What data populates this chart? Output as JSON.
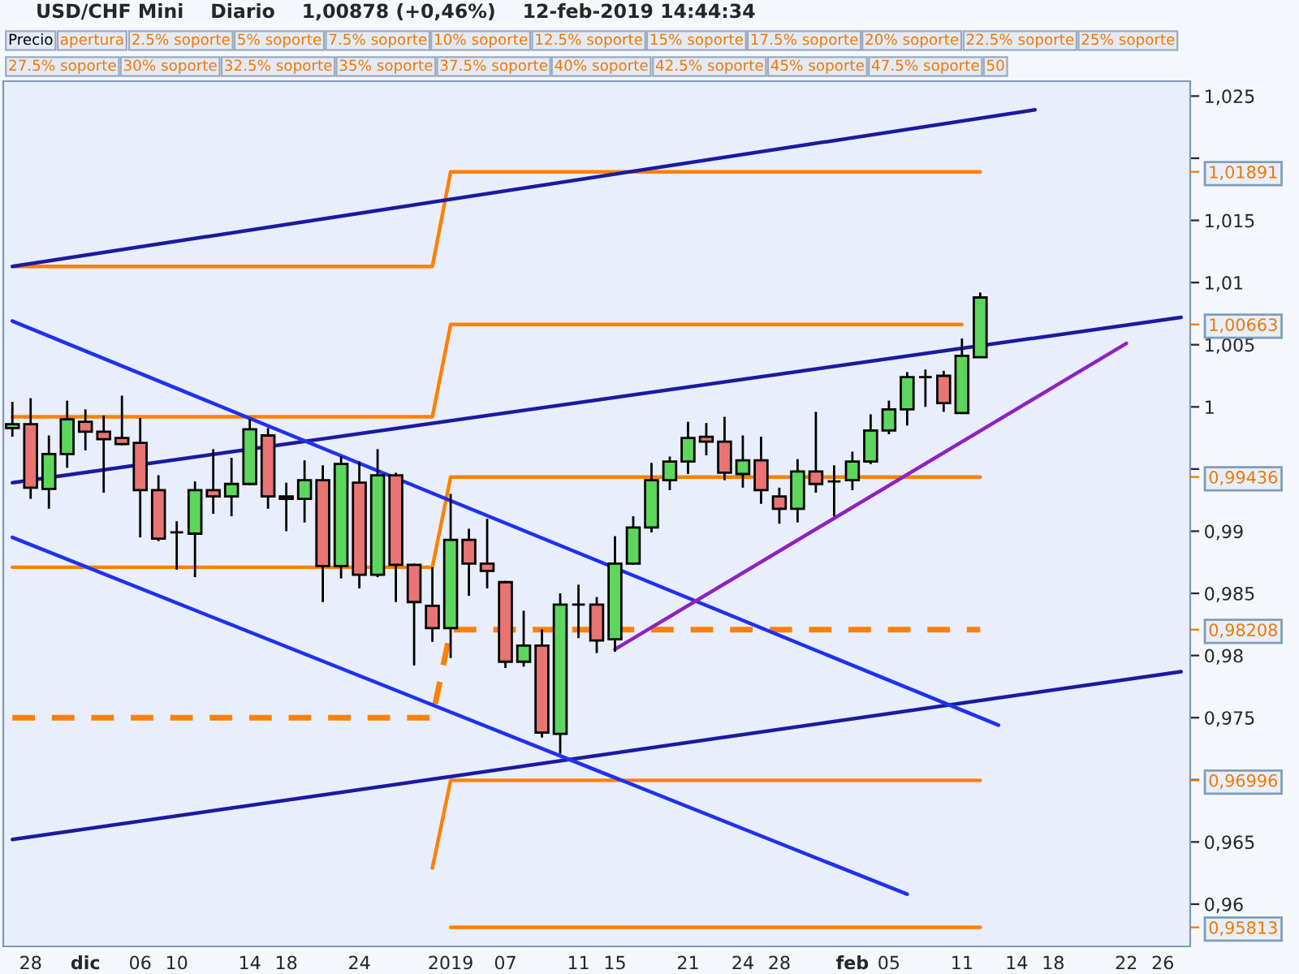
{
  "chart_data": {
    "type": "candlestick",
    "title": "USD/CHF Mini    Diario    1,00878 (+0,46%)    12-feb-2019 14:44:34",
    "categories": [
      null,
      "28",
      null,
      null,
      "dic",
      null,
      null,
      "06",
      null,
      "10",
      null,
      null,
      null,
      "14",
      null,
      "18",
      null,
      null,
      null,
      "24",
      null,
      null,
      null,
      null,
      "2019",
      null,
      null,
      "07",
      null,
      null,
      null,
      "11",
      null,
      "15",
      null,
      null,
      null,
      "21",
      null,
      null,
      "24",
      null,
      "28",
      null,
      null,
      null,
      "feb",
      null,
      "05",
      null,
      null,
      null,
      "11",
      null,
      null,
      "14",
      null,
      "18",
      null,
      null,
      null,
      "22",
      null,
      "26",
      null
    ],
    "ohlc": [
      [
        0.9983,
        1.0004,
        0.9976,
        0.9986
      ],
      [
        0.9986,
        1.0007,
        0.9926,
        0.9935
      ],
      [
        0.9934,
        0.9977,
        0.9918,
        0.9962
      ],
      [
        0.9962,
        1.0005,
        0.9951,
        0.999
      ],
      [
        0.9988,
        0.9998,
        0.9965,
        0.998
      ],
      [
        0.998,
        0.9993,
        0.9931,
        0.9974
      ],
      [
        0.9975,
        1.0009,
        0.9969,
        0.997
      ],
      [
        0.9971,
        0.9991,
        0.9895,
        0.9933
      ],
      [
        0.9933,
        0.9945,
        0.9892,
        0.9894
      ],
      [
        0.9899,
        0.9908,
        0.9869,
        0.9899
      ],
      [
        0.9898,
        0.994,
        0.9863,
        0.9933
      ],
      [
        0.9933,
        0.9966,
        0.9914,
        0.9928
      ],
      [
        0.9928,
        0.9959,
        0.9912,
        0.9938
      ],
      [
        0.9938,
        0.999,
        0.9937,
        0.9982
      ],
      [
        0.9977,
        0.9983,
        0.9918,
        0.9928
      ],
      [
        0.9928,
        0.9939,
        0.99,
        0.9926
      ],
      [
        0.9926,
        0.9957,
        0.9907,
        0.9941
      ],
      [
        0.9941,
        0.9953,
        0.9843,
        0.9872
      ],
      [
        0.9872,
        0.996,
        0.9862,
        0.9954
      ],
      [
        0.9939,
        0.9956,
        0.9854,
        0.9865
      ],
      [
        0.9865,
        0.9966,
        0.9863,
        0.9945
      ],
      [
        0.9945,
        0.9947,
        0.9843,
        0.9873
      ],
      [
        0.9873,
        0.9874,
        0.9792,
        0.9843
      ],
      [
        0.984,
        0.9871,
        0.9811,
        0.9822
      ],
      [
        0.9822,
        0.993,
        0.9798,
        0.9893
      ],
      [
        0.9893,
        0.9902,
        0.9848,
        0.9874
      ],
      [
        0.9874,
        0.991,
        0.9854,
        0.9868
      ],
      [
        0.9859,
        0.986,
        0.979,
        0.9795
      ],
      [
        0.9795,
        0.9836,
        0.9791,
        0.9808
      ],
      [
        0.9808,
        0.9821,
        0.9734,
        0.9738
      ],
      [
        0.9737,
        0.985,
        0.9721,
        0.9841
      ],
      [
        0.9841,
        0.9857,
        0.9814,
        0.9841
      ],
      [
        0.9841,
        0.9847,
        0.9802,
        0.9812
      ],
      [
        0.9813,
        0.9896,
        0.9803,
        0.9874
      ],
      [
        0.9874,
        0.9912,
        0.9873,
        0.9903
      ],
      [
        0.9903,
        0.9955,
        0.9899,
        0.9941
      ],
      [
        0.9941,
        0.996,
        0.9933,
        0.9956
      ],
      [
        0.9956,
        0.9988,
        0.9946,
        0.9975
      ],
      [
        0.9976,
        0.9987,
        0.9961,
        0.9972
      ],
      [
        0.9972,
        0.9992,
        0.9941,
        0.9947
      ],
      [
        0.9946,
        0.9977,
        0.9935,
        0.9957
      ],
      [
        0.9957,
        0.9976,
        0.9922,
        0.9933
      ],
      [
        0.9928,
        0.9935,
        0.9906,
        0.9918
      ],
      [
        0.9918,
        0.9958,
        0.9907,
        0.9948
      ],
      [
        0.9948,
        0.9996,
        0.9931,
        0.9938
      ],
      [
        0.994,
        0.9953,
        0.9912,
        0.994
      ],
      [
        0.9941,
        0.9964,
        0.9933,
        0.9956
      ],
      [
        0.9956,
        0.9994,
        0.9954,
        0.9981
      ],
      [
        0.9981,
        1.0005,
        0.9978,
        0.9998
      ],
      [
        0.9998,
        1.0028,
        0.9985,
        1.0024
      ],
      [
        1.0024,
        1.003,
        1.0,
        1.0024
      ],
      [
        1.0025,
        1.0029,
        0.9996,
        1.0003
      ],
      [
        0.9995,
        1.0055,
        0.9995,
        1.0041
      ],
      [
        1.004,
        1.0092,
        1.004,
        1.0088
      ],
      null,
      null,
      null,
      null,
      null,
      null,
      null,
      null,
      null,
      null,
      null
    ],
    "colors": [
      "#5cd65c",
      "#e87474",
      "#5cd65c",
      "#5cd65c",
      "#e87474",
      "#e87474",
      "#e87474",
      "#e87474",
      "#e87474",
      "#000000",
      "#5cd65c",
      "#e87474",
      "#5cd65c",
      "#5cd65c",
      "#e87474",
      "#e87474",
      "#5cd65c",
      "#e87474",
      "#5cd65c",
      "#e87474",
      "#5cd65c",
      "#e87474",
      "#e87474",
      "#e87474",
      "#5cd65c",
      "#e87474",
      "#e87474",
      "#e87474",
      "#5cd65c",
      "#e87474",
      "#5cd65c",
      "#000000",
      "#e87474",
      "#5cd65c",
      "#5cd65c",
      "#5cd65c",
      "#5cd65c",
      "#5cd65c",
      "#e87474",
      "#e87474",
      "#5cd65c",
      "#e87474",
      "#e87474",
      "#5cd65c",
      "#e87474",
      "#000000",
      "#5cd65c",
      "#5cd65c",
      "#5cd65c",
      "#5cd65c",
      "#000000",
      "#e87474",
      "#5cd65c",
      "#5cd65c",
      null,
      null,
      null,
      null,
      null,
      null,
      null,
      null,
      null,
      null,
      null
    ],
    "series": [
      {
        "type": "line",
        "color": "#ff8000",
        "values": [
          1.0113,
          1.0113,
          1.0113,
          1.0113,
          1.0113,
          1.0113,
          1.0113,
          1.0113,
          1.0113,
          1.0113,
          1.0113,
          1.0113,
          1.0113,
          1.0113,
          1.0113,
          1.0113,
          1.0113,
          1.0113,
          1.0113,
          1.0113,
          1.0113,
          1.0113,
          1.0113,
          1.0113,
          1.01891,
          1.01891,
          1.01891,
          1.01891,
          1.01891,
          1.01891,
          1.01891,
          1.01891,
          1.01891,
          1.01891,
          1.01891,
          1.01891,
          1.01891,
          1.01891,
          1.01891,
          1.01891,
          1.01891,
          1.01891,
          1.01891,
          1.01891,
          1.01891,
          1.01891,
          1.01891,
          1.01891,
          1.01891,
          1.01891,
          1.01891,
          1.01891,
          1.01891,
          1.01891,
          null,
          null,
          null,
          null,
          null,
          null,
          null,
          null,
          null,
          null,
          null
        ]
      },
      {
        "type": "line",
        "color": "#ff8000",
        "values": [
          0.9992,
          0.9992,
          0.9992,
          0.9992,
          0.9992,
          0.9992,
          0.9992,
          0.9992,
          0.9992,
          0.9992,
          0.9992,
          0.9992,
          0.9992,
          0.9992,
          0.9992,
          0.9992,
          0.9992,
          0.9992,
          0.9992,
          0.9992,
          0.9992,
          0.9992,
          0.9992,
          0.9992,
          1.00663,
          1.00663,
          1.00663,
          1.00663,
          1.00663,
          1.00663,
          1.00663,
          1.00663,
          1.00663,
          1.00663,
          1.00663,
          1.00663,
          1.00663,
          1.00663,
          1.00663,
          1.00663,
          1.00663,
          1.00663,
          1.00663,
          1.00663,
          1.00663,
          1.00663,
          1.00663,
          1.00663,
          1.00663,
          1.00663,
          1.00663,
          1.00663,
          1.00663,
          null,
          null,
          null,
          null,
          null,
          null,
          null,
          null,
          null,
          null,
          null,
          null
        ]
      },
      {
        "type": "line",
        "color": "#ff8000",
        "values": [
          0.9871,
          0.9871,
          0.9871,
          0.9871,
          0.9871,
          0.9871,
          0.9871,
          0.9871,
          0.9871,
          0.9871,
          0.9871,
          0.9871,
          0.9871,
          0.9871,
          0.9871,
          0.9871,
          0.9871,
          0.9871,
          0.9871,
          null,
          null,
          0.9871,
          null,
          0.9871,
          0.99436,
          0.99436,
          0.99436,
          0.99436,
          0.99436,
          0.99436,
          0.99436,
          0.99436,
          0.99436,
          0.99436,
          0.99436,
          0.99436,
          0.99436,
          0.99436,
          0.99436,
          0.99436,
          0.99436,
          0.99436,
          0.99436,
          null,
          0.99436,
          0.99436,
          null,
          0.99436,
          0.99436,
          0.99436,
          0.99436,
          0.99436,
          0.99436,
          0.99436,
          null,
          null,
          null,
          null,
          null,
          null,
          null,
          null,
          null,
          null,
          null
        ]
      },
      {
        "type": "line",
        "color": "#ff8000",
        "line_style": "dashed",
        "values": [
          0.975,
          0.975,
          0.975,
          0.975,
          0.975,
          0.975,
          0.975,
          0.975,
          0.975,
          0.975,
          0.975,
          0.975,
          0.975,
          0.975,
          0.975,
          0.975,
          0.975,
          0.975,
          0.975,
          0.975,
          0.975,
          0.975,
          0.975,
          0.975,
          0.98208,
          0.98208,
          0.98208,
          null,
          0.98208,
          0.98208,
          null,
          0.98208,
          null,
          null,
          0.98208,
          0.98208,
          0.98208,
          0.98208,
          0.98208,
          0.98208,
          0.98208,
          0.98208,
          0.98208,
          0.98208,
          0.98208,
          0.98208,
          0.98208,
          0.98208,
          0.98208,
          0.98208,
          0.98208,
          0.98208,
          0.98208,
          0.98208,
          null,
          null,
          null,
          null,
          null,
          null,
          null,
          null,
          null,
          null,
          null
        ]
      },
      {
        "type": "line",
        "color": "#ff8000",
        "values": [
          null,
          null,
          null,
          null,
          null,
          null,
          null,
          null,
          null,
          null,
          null,
          null,
          null,
          null,
          null,
          null,
          null,
          null,
          null,
          null,
          null,
          null,
          null,
          0.9629,
          0.96996,
          0.96996,
          0.96996,
          0.96996,
          0.96996,
          0.96996,
          0.96996,
          0.96996,
          0.96996,
          0.96996,
          0.96996,
          0.96996,
          0.96996,
          0.96996,
          0.96996,
          0.96996,
          0.96996,
          0.96996,
          0.96996,
          0.96996,
          0.96996,
          0.96996,
          0.96996,
          0.96996,
          0.96996,
          0.96996,
          0.96996,
          0.96996,
          0.96996,
          0.96996,
          null,
          null,
          null,
          null,
          null,
          null,
          null,
          null,
          null,
          null,
          null
        ]
      },
      {
        "type": "line",
        "color": "#ff8000",
        "values": [
          null,
          null,
          null,
          null,
          null,
          null,
          null,
          null,
          null,
          null,
          null,
          null,
          null,
          null,
          null,
          null,
          null,
          null,
          null,
          null,
          null,
          null,
          null,
          null,
          0.95813,
          0.95813,
          0.95813,
          0.95813,
          0.95813,
          0.95813,
          0.95813,
          0.95813,
          0.95813,
          0.95813,
          0.95813,
          0.95813,
          0.95813,
          0.95813,
          0.95813,
          0.95813,
          0.95813,
          0.95813,
          0.95813,
          0.95813,
          0.95813,
          0.95813,
          0.95813,
          0.95813,
          0.95813,
          0.95813,
          0.95813,
          0.95813,
          0.95813,
          0.95813,
          null,
          null,
          null,
          null,
          null,
          null,
          null,
          null,
          null,
          null,
          null
        ]
      },
      {
        "type": "line",
        "color": "#1a1aa0",
        "values": [
          1.0113,
          null,
          null,
          null,
          null,
          null,
          null,
          null,
          null,
          null,
          null,
          null,
          null,
          null,
          null,
          null,
          null,
          null,
          null,
          null,
          null,
          null,
          null,
          null,
          null,
          null,
          null,
          null,
          null,
          null,
          null,
          null,
          null,
          null,
          null,
          null,
          null,
          null,
          null,
          null,
          null,
          null,
          null,
          null,
          null,
          null,
          null,
          null,
          null,
          null,
          null,
          null,
          null,
          null,
          null,
          null,
          1.0239,
          null,
          null,
          null,
          null,
          null,
          null,
          null,
          null
        ]
      },
      {
        "type": "line",
        "color": "#1a1aa0",
        "values": [
          0.9939,
          null,
          null,
          null,
          null,
          null,
          null,
          null,
          null,
          null,
          null,
          null,
          null,
          null,
          null,
          null,
          null,
          null,
          null,
          null,
          null,
          null,
          null,
          null,
          null,
          null,
          null,
          null,
          null,
          null,
          null,
          null,
          null,
          null,
          null,
          null,
          null,
          null,
          null,
          null,
          null,
          null,
          null,
          null,
          null,
          null,
          null,
          null,
          null,
          null,
          null,
          null,
          null,
          null,
          null,
          null,
          null,
          null,
          null,
          null,
          null,
          null,
          null,
          null,
          1.0072
        ]
      },
      {
        "type": "line",
        "color": "#1a1aa0",
        "values": [
          0.9652,
          null,
          null,
          null,
          null,
          null,
          null,
          null,
          null,
          null,
          null,
          null,
          null,
          null,
          null,
          null,
          null,
          null,
          null,
          null,
          null,
          null,
          null,
          null,
          null,
          null,
          null,
          null,
          null,
          null,
          null,
          null,
          null,
          null,
          null,
          null,
          null,
          null,
          null,
          null,
          null,
          null,
          null,
          null,
          null,
          null,
          null,
          null,
          null,
          null,
          null,
          null,
          null,
          null,
          null,
          null,
          null,
          null,
          null,
          null,
          null,
          null,
          null,
          null,
          0.9787
        ]
      },
      {
        "type": "line",
        "color": "#2030f0",
        "values": [
          1.0069,
          null,
          null,
          null,
          null,
          null,
          null,
          null,
          null,
          null,
          null,
          null,
          null,
          null,
          null,
          null,
          null,
          null,
          null,
          null,
          null,
          null,
          null,
          null,
          null,
          null,
          null,
          null,
          null,
          null,
          null,
          null,
          null,
          null,
          null,
          null,
          null,
          null,
          null,
          null,
          null,
          null,
          null,
          null,
          null,
          null,
          null,
          null,
          null,
          null,
          null,
          null,
          null,
          null,
          0.9744,
          null,
          null,
          null,
          null,
          null,
          null,
          null,
          null,
          null,
          null
        ]
      },
      {
        "type": "line",
        "color": "#2030f0",
        "values": [
          0.9895,
          null,
          null,
          null,
          null,
          null,
          null,
          null,
          null,
          null,
          null,
          null,
          null,
          null,
          null,
          null,
          null,
          null,
          null,
          null,
          null,
          null,
          null,
          null,
          null,
          null,
          null,
          null,
          null,
          null,
          null,
          null,
          null,
          null,
          null,
          null,
          null,
          null,
          null,
          null,
          null,
          null,
          null,
          null,
          null,
          null,
          null,
          null,
          null,
          0.9608,
          null,
          null,
          null,
          null,
          null,
          null,
          null,
          null,
          null,
          null,
          null,
          null,
          null,
          null,
          null
        ]
      },
      {
        "type": "line",
        "color": "#9020c0",
        "values": [
          null,
          null,
          null,
          null,
          null,
          null,
          null,
          null,
          null,
          null,
          null,
          null,
          null,
          null,
          null,
          null,
          null,
          null,
          null,
          null,
          null,
          null,
          null,
          null,
          null,
          null,
          null,
          null,
          null,
          null,
          null,
          null,
          null,
          0.9805,
          null,
          null,
          null,
          null,
          null,
          null,
          null,
          null,
          null,
          null,
          null,
          null,
          null,
          null,
          null,
          null,
          null,
          null,
          null,
          null,
          null,
          null,
          null,
          null,
          null,
          null,
          null,
          1.0051,
          null,
          null,
          null
        ]
      }
    ],
    "ylim": [
      0.9566,
      1.0262
    ],
    "yticks": [
      {
        "value": 1.025,
        "label": "1,025"
      },
      {
        "value": 1.02,
        "label": null
      },
      {
        "value": 1.015,
        "label": "1,015"
      },
      {
        "value": 1.01,
        "label": "1,01"
      },
      {
        "value": 1.005,
        "label": "1,005"
      },
      {
        "value": 1,
        "label": "1"
      },
      {
        "value": 0.995,
        "label": null
      },
      {
        "value": 0.99,
        "label": "0,99"
      },
      {
        "value": 0.985,
        "label": "0,985"
      },
      {
        "value": 0.98,
        "label": "0,98"
      },
      {
        "value": 0.975,
        "label": "0,975"
      },
      {
        "value": 0.97,
        "label": null
      },
      {
        "value": 0.965,
        "label": "0,965"
      },
      {
        "value": 0.96,
        "label": "0,96"
      }
    ],
    "annotations": [
      "Precio",
      "apertura",
      "2.5% soporte",
      "5% soporte",
      "7.5% soporte",
      "10% soporte",
      "12.5% soporte",
      "15% soporte",
      "17.5% soporte",
      "20% soporte",
      "22.5% soporte",
      "25% soporte",
      "27.5% soporte",
      "30% soporte",
      "32.5% soporte",
      "35% soporte",
      "37.5% soporte",
      "40% soporte",
      "42.5% soporte",
      "45% soporte",
      "47.5% soporte",
      "50"
    ],
    "y2lim": [
      0.9566,
      1.0262
    ],
    "y2ticks": [
      {
        "value": 1.01891,
        "label": "1,01891"
      },
      {
        "value": 1.00663,
        "label": "1,00663"
      },
      {
        "value": 0.99436,
        "label": "0,99436"
      },
      {
        "value": 0.98208,
        "label": "0,98208"
      },
      {
        "value": 0.96996,
        "label": "0,96996"
      },
      {
        "value": 0.95813,
        "label": "0,95813"
      }
    ]
  }
}
